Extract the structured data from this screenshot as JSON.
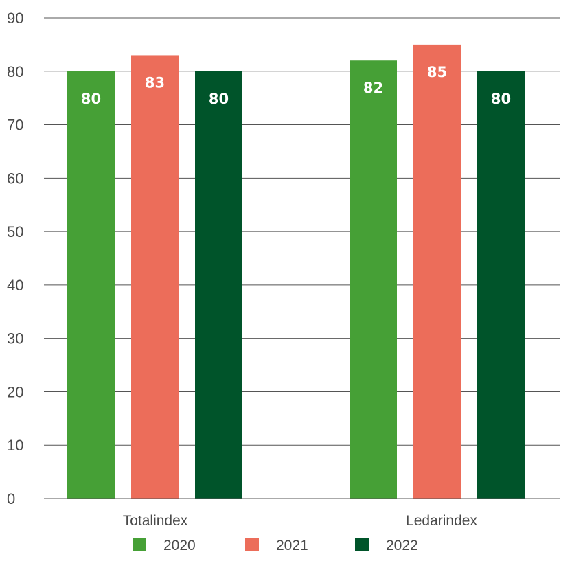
{
  "chart_data": {
    "type": "bar",
    "categories": [
      "Totalindex",
      "Ledarindex"
    ],
    "series": [
      {
        "name": "2020",
        "values": [
          80,
          82
        ],
        "color": "#46a036"
      },
      {
        "name": "2021",
        "values": [
          83,
          85
        ],
        "color": "#ec6d5a"
      },
      {
        "name": "2022",
        "values": [
          80,
          80
        ],
        "color": "#00542a"
      }
    ],
    "data_labels": [
      [
        "80",
        "83",
        "80"
      ],
      [
        "82",
        "85",
        "80"
      ]
    ],
    "ylim": [
      0,
      90
    ],
    "yticks": [
      0,
      10,
      20,
      30,
      40,
      50,
      60,
      70,
      80,
      90
    ],
    "grid": true,
    "grid_color": "#555555",
    "legend_position": "bottom",
    "title": "",
    "xlabel": "",
    "ylabel": ""
  }
}
